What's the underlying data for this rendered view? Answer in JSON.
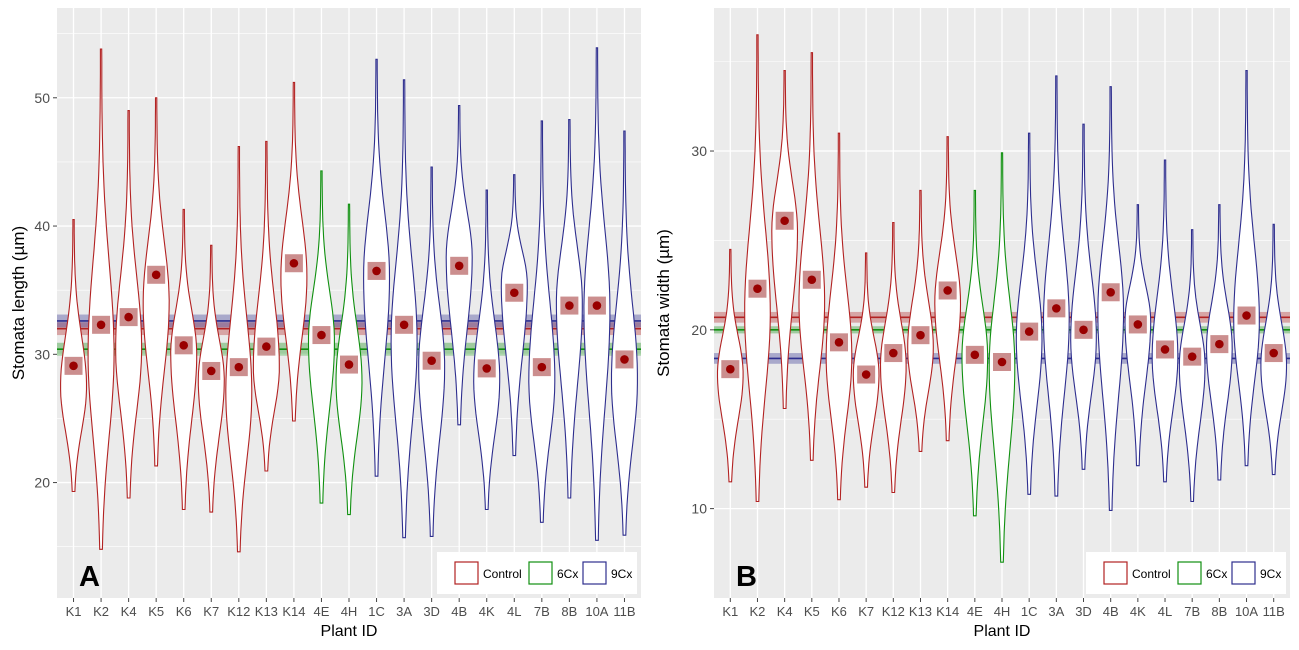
{
  "colors": {
    "Control": "#b22222",
    "6Cx": "#109010",
    "9Cx": "#2e2e8e",
    "mean": "#990000",
    "mean_box": "#c27a7a",
    "panel_bg": "#ebebeb",
    "grid": "#ffffff"
  },
  "chart_data": [
    {
      "type": "violin",
      "panel_label": "A",
      "xlabel": "Plant ID",
      "ylabel": "Stomata length (µm)",
      "ylim": [
        11,
        57
      ],
      "yticks": [
        20,
        30,
        40,
        50
      ],
      "grid": true,
      "legend": {
        "placement": "bottom-right",
        "entries": [
          {
            "name": "Control",
            "color": "#b22222"
          },
          {
            "name": "6Cx",
            "color": "#109010"
          },
          {
            "name": "9Cx",
            "color": "#2e2e8e"
          }
        ]
      },
      "group_means": [
        {
          "group": "Control",
          "value": 32.0,
          "band": [
            31.5,
            32.5
          ]
        },
        {
          "group": "6Cx",
          "value": 30.4,
          "band": [
            29.9,
            30.9
          ]
        },
        {
          "group": "9Cx",
          "value": 32.6,
          "band": [
            32.1,
            33.1
          ]
        }
      ],
      "categories": [
        {
          "id": "K1",
          "group": "Control",
          "min": 19.3,
          "max": 40.5,
          "mean": 29.1,
          "peak": 27.5
        },
        {
          "id": "K2",
          "group": "Control",
          "min": 14.8,
          "max": 53.8,
          "mean": 32.3,
          "peak": 30.0
        },
        {
          "id": "K4",
          "group": "Control",
          "min": 18.8,
          "max": 49.0,
          "mean": 32.9,
          "peak": 30.5
        },
        {
          "id": "K5",
          "group": "Control",
          "min": 21.3,
          "max": 50.0,
          "mean": 36.2,
          "peak": 34.0
        },
        {
          "id": "K6",
          "group": "Control",
          "min": 17.9,
          "max": 41.3,
          "mean": 30.7,
          "peak": 30.0
        },
        {
          "id": "K7",
          "group": "Control",
          "min": 17.7,
          "max": 38.5,
          "mean": 28.7,
          "peak": 28.0
        },
        {
          "id": "K12",
          "group": "Control",
          "min": 14.6,
          "max": 46.2,
          "mean": 29.0,
          "peak": 27.0
        },
        {
          "id": "K13",
          "group": "Control",
          "min": 20.9,
          "max": 46.6,
          "mean": 30.6,
          "peak": 29.0
        },
        {
          "id": "K14",
          "group": "Control",
          "min": 24.8,
          "max": 51.2,
          "mean": 37.1,
          "peak": 36.0
        },
        {
          "id": "4E",
          "group": "6Cx",
          "min": 18.4,
          "max": 44.3,
          "mean": 31.5,
          "peak": 31.0
        },
        {
          "id": "4H",
          "group": "6Cx",
          "min": 17.5,
          "max": 41.7,
          "mean": 29.2,
          "peak": 28.0
        },
        {
          "id": "1C",
          "group": "9Cx",
          "min": 20.5,
          "max": 53.0,
          "mean": 36.5,
          "peak": 36.0
        },
        {
          "id": "3A",
          "group": "9Cx",
          "min": 15.7,
          "max": 51.4,
          "mean": 32.3,
          "peak": 31.0
        },
        {
          "id": "3D",
          "group": "9Cx",
          "min": 15.8,
          "max": 44.6,
          "mean": 29.5,
          "peak": 29.0
        },
        {
          "id": "4B",
          "group": "9Cx",
          "min": 24.5,
          "max": 49.4,
          "mean": 36.9,
          "peak": 37.5
        },
        {
          "id": "4K",
          "group": "9Cx",
          "min": 17.9,
          "max": 42.8,
          "mean": 28.9,
          "peak": 28.0
        },
        {
          "id": "4L",
          "group": "9Cx",
          "min": 22.1,
          "max": 44.0,
          "mean": 34.8,
          "peak": 35.5
        },
        {
          "id": "7B",
          "group": "9Cx",
          "min": 16.9,
          "max": 48.2,
          "mean": 29.0,
          "peak": 28.0
        },
        {
          "id": "8B",
          "group": "9Cx",
          "min": 18.8,
          "max": 48.3,
          "mean": 33.8,
          "peak": 34.0
        },
        {
          "id": "10A",
          "group": "9Cx",
          "min": 15.5,
          "max": 53.9,
          "mean": 33.8,
          "peak": 33.5
        },
        {
          "id": "11B",
          "group": "9Cx",
          "min": 15.9,
          "max": 47.4,
          "mean": 29.6,
          "peak": 28.0
        }
      ]
    },
    {
      "type": "violin",
      "panel_label": "B",
      "xlabel": "Plant ID",
      "ylabel": "Stomata width (µm)",
      "ylim": [
        5,
        38
      ],
      "yticks": [
        10,
        20,
        30
      ],
      "grid": true,
      "legend": {
        "placement": "bottom-right",
        "entries": [
          {
            "name": "Control",
            "color": "#b22222"
          },
          {
            "name": "6Cx",
            "color": "#109010"
          },
          {
            "name": "9Cx",
            "color": "#2e2e8e"
          }
        ]
      },
      "group_means": [
        {
          "group": "Control",
          "value": 20.7,
          "band": [
            20.4,
            21.0
          ]
        },
        {
          "group": "6Cx",
          "value": 20.0,
          "band": [
            19.8,
            20.2
          ]
        },
        {
          "group": "9Cx",
          "value": 18.4,
          "band": [
            18.1,
            18.7
          ]
        }
      ],
      "categories": [
        {
          "id": "K1",
          "group": "Control",
          "min": 11.5,
          "max": 24.5,
          "mean": 17.8,
          "peak": 17.5
        },
        {
          "id": "K2",
          "group": "Control",
          "min": 10.4,
          "max": 36.5,
          "mean": 22.3,
          "peak": 21.0
        },
        {
          "id": "K4",
          "group": "Control",
          "min": 15.6,
          "max": 34.5,
          "mean": 26.1,
          "peak": 25.5
        },
        {
          "id": "K5",
          "group": "Control",
          "min": 12.7,
          "max": 35.5,
          "mean": 22.8,
          "peak": 21.5
        },
        {
          "id": "K6",
          "group": "Control",
          "min": 10.5,
          "max": 31.0,
          "mean": 19.3,
          "peak": 18.5
        },
        {
          "id": "K7",
          "group": "Control",
          "min": 11.2,
          "max": 24.3,
          "mean": 17.5,
          "peak": 17.5
        },
        {
          "id": "K12",
          "group": "Control",
          "min": 10.9,
          "max": 26.0,
          "mean": 18.7,
          "peak": 18.0
        },
        {
          "id": "K13",
          "group": "Control",
          "min": 13.2,
          "max": 27.8,
          "mean": 19.7,
          "peak": 19.0
        },
        {
          "id": "K14",
          "group": "Control",
          "min": 13.8,
          "max": 30.8,
          "mean": 22.2,
          "peak": 21.5
        },
        {
          "id": "4E",
          "group": "6Cx",
          "min": 9.6,
          "max": 27.8,
          "mean": 18.6,
          "peak": 18.5
        },
        {
          "id": "4H",
          "group": "6Cx",
          "min": 7.0,
          "max": 29.9,
          "mean": 18.2,
          "peak": 18.0
        },
        {
          "id": "1C",
          "group": "9Cx",
          "min": 10.8,
          "max": 31.0,
          "mean": 19.9,
          "peak": 19.5
        },
        {
          "id": "3A",
          "group": "9Cx",
          "min": 10.7,
          "max": 34.2,
          "mean": 21.2,
          "peak": 20.5
        },
        {
          "id": "3D",
          "group": "9Cx",
          "min": 12.2,
          "max": 31.5,
          "mean": 20.0,
          "peak": 19.5
        },
        {
          "id": "4B",
          "group": "9Cx",
          "min": 9.9,
          "max": 33.6,
          "mean": 22.1,
          "peak": 21.0
        },
        {
          "id": "4K",
          "group": "9Cx",
          "min": 12.4,
          "max": 27.0,
          "mean": 20.3,
          "peak": 20.5
        },
        {
          "id": "4L",
          "group": "9Cx",
          "min": 11.5,
          "max": 29.5,
          "mean": 18.9,
          "peak": 18.5
        },
        {
          "id": "7B",
          "group": "9Cx",
          "min": 10.4,
          "max": 25.6,
          "mean": 18.5,
          "peak": 18.0
        },
        {
          "id": "8B",
          "group": "9Cx",
          "min": 11.6,
          "max": 27.0,
          "mean": 19.2,
          "peak": 19.0
        },
        {
          "id": "10A",
          "group": "9Cx",
          "min": 12.4,
          "max": 34.5,
          "mean": 20.8,
          "peak": 20.5
        },
        {
          "id": "11B",
          "group": "9Cx",
          "min": 11.9,
          "max": 25.9,
          "mean": 18.7,
          "peak": 18.0
        }
      ]
    }
  ]
}
